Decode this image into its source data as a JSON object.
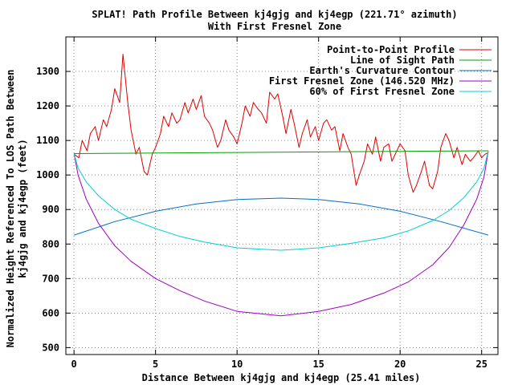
{
  "chart_data": {
    "type": "line",
    "title": "SPLAT! Path Profile Between kj4gjg and kj4egp (221.71° azimuth)",
    "subtitle": "With First Fresnel Zone",
    "xlabel": "Distance Between kj4gjg and kj4egp (25.41 miles)",
    "ylabel_line1": "Normalized Height Referenced To LOS Path Between",
    "ylabel_line2": "kj4gjg and kj4egp (feet)",
    "xlim": [
      -0.5,
      26
    ],
    "ylim": [
      480,
      1400
    ],
    "xticks": [
      0,
      5,
      10,
      15,
      20,
      25
    ],
    "yticks": [
      500,
      600,
      700,
      800,
      900,
      1000,
      1100,
      1200,
      1300
    ],
    "grid": true,
    "legend_position": "top-right",
    "series": [
      {
        "name": "Point-to-Point Profile",
        "color": "#e00000",
        "x": [
          0,
          0.3,
          0.5,
          0.8,
          1.0,
          1.3,
          1.5,
          1.8,
          2.0,
          2.3,
          2.5,
          2.8,
          3.0,
          3.3,
          3.5,
          3.8,
          4.0,
          4.3,
          4.5,
          4.8,
          5.0,
          5.3,
          5.5,
          5.8,
          6.0,
          6.3,
          6.5,
          6.8,
          7.0,
          7.3,
          7.5,
          7.8,
          8.0,
          8.3,
          8.5,
          8.8,
          9.0,
          9.3,
          9.5,
          9.8,
          10.0,
          10.3,
          10.5,
          10.8,
          11.0,
          11.3,
          11.5,
          11.8,
          12.0,
          12.3,
          12.5,
          12.8,
          13.0,
          13.3,
          13.5,
          13.8,
          14.0,
          14.3,
          14.5,
          14.8,
          15.0,
          15.3,
          15.5,
          15.8,
          16.0,
          16.3,
          16.5,
          16.8,
          17.0,
          17.3,
          17.5,
          17.8,
          18.0,
          18.3,
          18.5,
          18.8,
          19.0,
          19.3,
          19.5,
          19.8,
          20.0,
          20.3,
          20.5,
          20.8,
          21.0,
          21.3,
          21.5,
          21.8,
          22.0,
          22.3,
          22.5,
          22.8,
          23.0,
          23.3,
          23.5,
          23.8,
          24.0,
          24.3,
          24.5,
          24.8,
          25.0,
          25.2,
          25.41
        ],
        "y": [
          1060,
          1050,
          1100,
          1070,
          1120,
          1140,
          1100,
          1160,
          1140,
          1190,
          1250,
          1210,
          1350,
          1210,
          1130,
          1060,
          1080,
          1010,
          1000,
          1060,
          1080,
          1120,
          1170,
          1140,
          1180,
          1150,
          1160,
          1210,
          1180,
          1220,
          1190,
          1230,
          1170,
          1150,
          1130,
          1080,
          1100,
          1160,
          1130,
          1110,
          1090,
          1150,
          1200,
          1170,
          1210,
          1190,
          1180,
          1150,
          1240,
          1220,
          1235,
          1170,
          1120,
          1190,
          1150,
          1080,
          1120,
          1160,
          1110,
          1140,
          1100,
          1150,
          1160,
          1130,
          1140,
          1070,
          1120,
          1080,
          1060,
          970,
          1000,
          1040,
          1090,
          1060,
          1110,
          1040,
          1080,
          1090,
          1040,
          1070,
          1090,
          1070,
          1000,
          950,
          970,
          1010,
          1040,
          970,
          960,
          1010,
          1080,
          1120,
          1100,
          1050,
          1080,
          1030,
          1060,
          1040,
          1050,
          1070,
          1050,
          1060,
          1065
        ]
      },
      {
        "name": "Line of Sight Path",
        "color": "#00a000",
        "x": [
          0,
          25.41
        ],
        "y": [
          1062,
          1070
        ]
      },
      {
        "name": "Earth's Curvature Contour",
        "color": "#0070c0",
        "x": [
          0,
          2.5,
          5,
          7.5,
          10,
          12.7,
          15,
          17.5,
          20,
          22.5,
          25.41
        ],
        "y": [
          826,
          865,
          895,
          916,
          929,
          933,
          929,
          916,
          895,
          865,
          826
        ]
      },
      {
        "name": "First Fresnel Zone (146.520 MHz)",
        "color": "#a000c0",
        "x": [
          0,
          0.25,
          0.75,
          1.5,
          2.5,
          3.5,
          5,
          6.5,
          8,
          10,
          12.7,
          15,
          17,
          19,
          20.5,
          22,
          23,
          23.9,
          24.7,
          25.15,
          25.41
        ],
        "y": [
          1062,
          1000,
          930,
          860,
          795,
          750,
          700,
          665,
          635,
          605,
          592,
          605,
          625,
          658,
          690,
          740,
          790,
          855,
          930,
          995,
          1070
        ]
      },
      {
        "name": "60% of First Fresnel Zone",
        "color": "#00d0d0",
        "x": [
          0,
          0.25,
          0.75,
          1.5,
          2.5,
          3.5,
          5,
          6.5,
          8,
          10,
          12.7,
          15,
          17,
          19,
          20.5,
          22,
          23,
          23.9,
          24.7,
          25.15,
          25.41
        ],
        "y": [
          1062,
          1020,
          980,
          940,
          900,
          872,
          845,
          822,
          806,
          789,
          782,
          789,
          802,
          818,
          838,
          868,
          897,
          934,
          980,
          1020,
          1070
        ]
      }
    ]
  }
}
